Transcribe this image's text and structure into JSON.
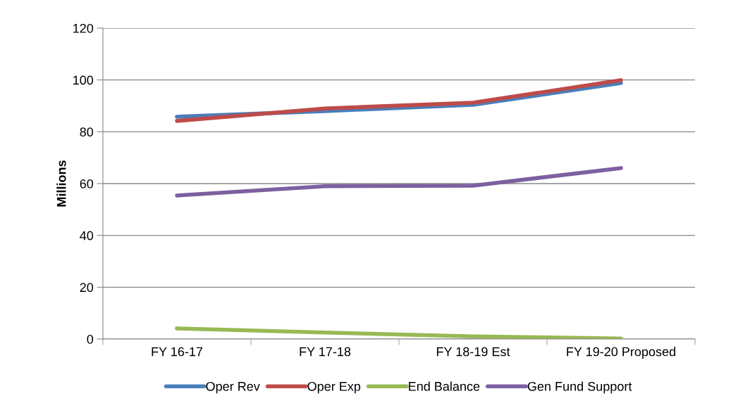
{
  "chart_data": {
    "type": "line",
    "ylabel": "Millions",
    "categories": [
      "FY 16-17",
      "FY 17-18",
      "FY 18-19 Est",
      "FY 19-20 Proposed"
    ],
    "series": [
      {
        "name": "Oper Rev",
        "color": "#4a7ebb",
        "values": [
          85.8,
          88,
          90.4,
          98.8
        ]
      },
      {
        "name": "Oper Exp",
        "color": "#be4b48",
        "values": [
          84.2,
          89,
          91.2,
          99.9
        ]
      },
      {
        "name": "End Balance",
        "color": "#98b954",
        "values": [
          4.1,
          2.5,
          1,
          0.2
        ]
      },
      {
        "name": "Gen Fund Support",
        "color": "#7d60a0",
        "values": [
          55.4,
          59,
          59.2,
          66
        ]
      }
    ],
    "ylim": [
      0,
      120
    ],
    "yticks": [
      0,
      20,
      40,
      60,
      80,
      100,
      120
    ],
    "grid": "y",
    "legend": "bottom",
    "marker": "none",
    "line_style": "solid"
  }
}
